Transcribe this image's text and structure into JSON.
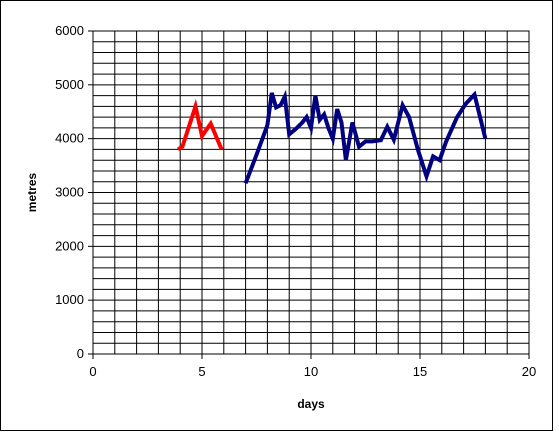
{
  "chart_data": {
    "type": "line",
    "xlabel": "days",
    "ylabel": "metres",
    "xlim": [
      0,
      20
    ],
    "ylim": [
      0,
      6000
    ],
    "x_ticks": [
      0,
      5,
      10,
      15,
      20
    ],
    "y_ticks": [
      0,
      1000,
      2000,
      3000,
      4000,
      5000,
      6000
    ],
    "grid": true,
    "legend": "none",
    "series": [
      {
        "color": "#ff0000",
        "x": [
          3.9,
          4.1,
          4.7,
          5.0,
          5.4,
          5.9
        ],
        "y": [
          3800,
          3850,
          4600,
          4050,
          4280,
          3800
        ]
      },
      {
        "color": "#000080",
        "x": [
          7.0,
          7.5,
          8.0,
          8.2,
          8.4,
          8.6,
          8.8,
          9.0,
          9.3,
          9.6,
          9.8,
          10.0,
          10.2,
          10.4,
          10.6,
          10.8,
          11.0,
          11.2,
          11.4,
          11.6,
          11.9,
          12.2,
          12.5,
          12.8,
          13.2,
          13.5,
          13.8,
          14.2,
          14.5,
          14.9,
          15.3,
          15.6,
          15.9,
          16.2,
          16.7,
          17.1,
          17.5,
          18.0
        ],
        "y": [
          3170,
          3700,
          4250,
          4850,
          4580,
          4620,
          4780,
          4080,
          4180,
          4300,
          4400,
          4200,
          4800,
          4350,
          4450,
          4200,
          4000,
          4550,
          4300,
          3600,
          4300,
          3850,
          3950,
          3950,
          3970,
          4220,
          3980,
          4620,
          4400,
          3800,
          3300,
          3670,
          3600,
          3950,
          4400,
          4650,
          4820,
          4000
        ]
      }
    ]
  }
}
